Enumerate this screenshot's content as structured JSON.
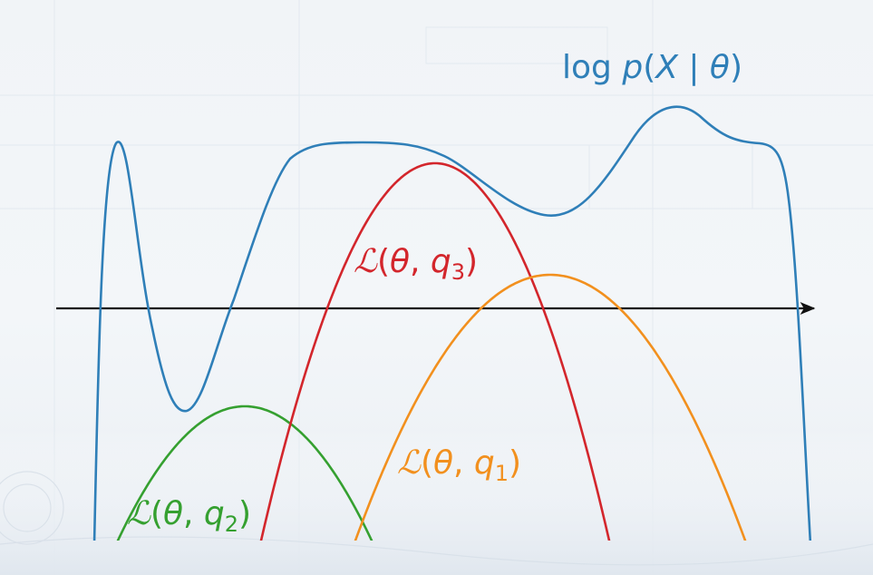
{
  "colors": {
    "log_likelihood": "#2f7fb8",
    "bound_q1": "#f2901e",
    "bound_q2": "#35a030",
    "bound_q3": "#d3262c",
    "axis": "#111111",
    "background": "#f1f4f7"
  },
  "labels": {
    "log_likelihood": {
      "prefix": "log ",
      "func": "p",
      "open": "(",
      "var": "X",
      "sep": " | ",
      "param": "θ",
      "close": ")"
    },
    "bound_q3": {
      "script": "ℒ",
      "open": "(",
      "param": "θ",
      "sep": ", ",
      "q": "q",
      "sub": "3",
      "close": ")"
    },
    "bound_q1": {
      "script": "ℒ",
      "open": "(",
      "param": "θ",
      "sep": ", ",
      "q": "q",
      "sub": "1",
      "close": ")"
    },
    "bound_q2": {
      "script": "ℒ",
      "open": "(",
      "param": "θ",
      "sep": ", ",
      "q": "q",
      "sub": "2",
      "close": ")"
    }
  }
}
